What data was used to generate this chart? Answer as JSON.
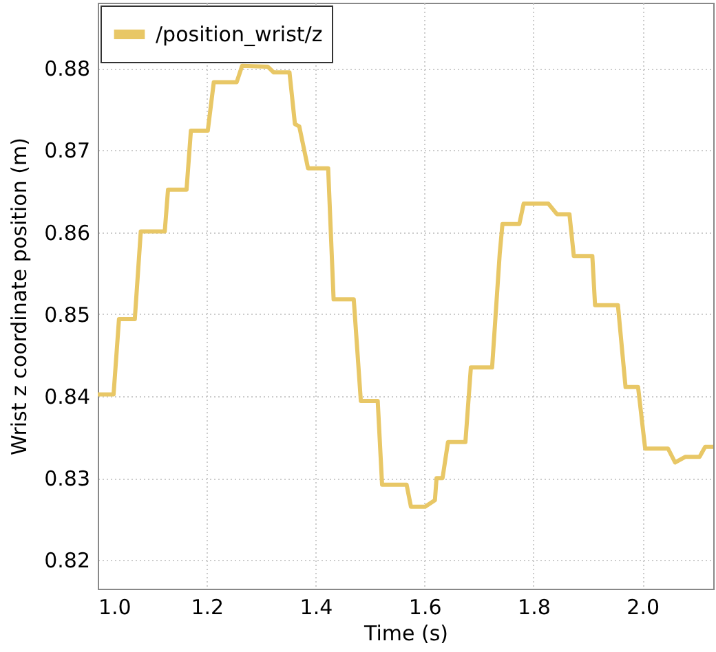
{
  "chart_data": {
    "type": "line",
    "xlabel": "Time (s)",
    "ylabel": "Wrist z coordinate position (m)",
    "x": [
      1.0,
      1.029,
      1.039,
      1.068,
      1.079,
      1.123,
      1.129,
      1.163,
      1.171,
      1.202,
      1.213,
      1.255,
      1.265,
      1.312,
      1.323,
      1.352,
      1.362,
      1.37,
      1.386,
      1.423,
      1.433,
      1.47,
      1.483,
      1.514,
      1.522,
      1.567,
      1.575,
      1.601,
      1.619,
      1.622,
      1.633,
      1.643,
      1.675,
      1.685,
      1.724,
      1.738,
      1.743,
      1.774,
      1.782,
      1.827,
      1.843,
      1.866,
      1.874,
      1.908,
      1.913,
      1.955,
      1.969,
      1.992,
      2.005,
      2.047,
      2.06,
      2.079,
      2.105,
      2.115,
      2.13
    ],
    "series": [
      {
        "name": "/position_wrist/z",
        "color": "#e8c766",
        "values": [
          0.8402,
          0.8402,
          0.8494,
          0.8494,
          0.8601,
          0.8601,
          0.8652,
          0.8652,
          0.8724,
          0.8724,
          0.8783,
          0.8783,
          0.8803,
          0.8802,
          0.8795,
          0.8795,
          0.8732,
          0.8729,
          0.8678,
          0.8678,
          0.8518,
          0.8518,
          0.8394,
          0.8394,
          0.8292,
          0.8292,
          0.8265,
          0.8265,
          0.8273,
          0.83,
          0.83,
          0.8344,
          0.8344,
          0.8435,
          0.8435,
          0.8574,
          0.861,
          0.861,
          0.8635,
          0.8635,
          0.8622,
          0.8622,
          0.8571,
          0.8571,
          0.8511,
          0.8511,
          0.8411,
          0.8411,
          0.8336,
          0.8336,
          0.8319,
          0.8326,
          0.8326,
          0.8338,
          0.8338
        ]
      }
    ],
    "xlim": [
      1.0,
      2.13
    ],
    "xticks": [
      {
        "value": 1,
        "label": "1.0"
      },
      1.2,
      1.4,
      1.6,
      1.8,
      {
        "value": 2,
        "label": "2.0"
      }
    ],
    "ylim": [
      0.8165,
      0.888
    ],
    "yticks": [
      0.82,
      0.83,
      0.84,
      0.85,
      0.86,
      0.87,
      0.88
    ],
    "grid": true,
    "legend": "top left",
    "line_style": "solid"
  }
}
